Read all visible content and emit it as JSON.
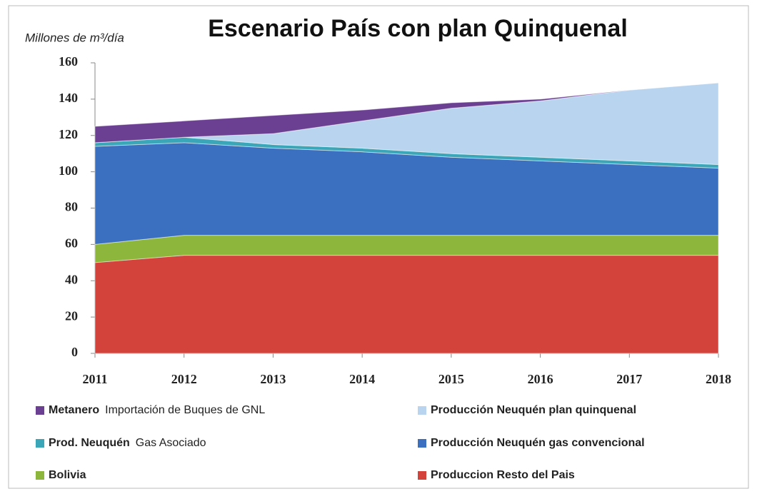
{
  "chart_data": {
    "type": "stacked_area",
    "title": "Escenario País con plan Quinquenal",
    "y_label": "Millones de m³/día",
    "x": [
      2011,
      2012,
      2013,
      2014,
      2015,
      2016,
      2017,
      2018
    ],
    "xlim": [
      2011,
      2018
    ],
    "xticks": [
      2011,
      2012,
      2013,
      2014,
      2015,
      2016,
      2017,
      2018
    ],
    "ylim": [
      0,
      160
    ],
    "yticks": [
      0,
      20,
      40,
      60,
      80,
      100,
      120,
      140,
      160
    ],
    "series": [
      {
        "name": "Produccion Resto del Pais",
        "color": "#d4433b",
        "values": [
          50,
          54,
          54,
          54,
          54,
          54,
          54,
          54
        ]
      },
      {
        "name": "Bolivia",
        "color": "#8db63c",
        "values": [
          10,
          11,
          11,
          11,
          11,
          11,
          11,
          11
        ]
      },
      {
        "name": "Producción Neuquén gas convencional",
        "color": "#3b6fbf",
        "values": [
          54,
          51,
          48,
          46,
          43,
          41,
          39,
          37
        ]
      },
      {
        "name": "Prod. Neuquén",
        "legend_note": "Gas Asociado",
        "color": "#3aa6b7",
        "values": [
          2,
          3,
          2,
          2,
          2,
          2,
          2,
          2
        ]
      },
      {
        "name": "Producción Neuquén plan quinquenal",
        "color": "#b9d4ee",
        "values": [
          0,
          0,
          6,
          15,
          25,
          31,
          39,
          45
        ]
      },
      {
        "name": "Metanero",
        "legend_note": "Importación de Buques de GNL",
        "color": "#6b3f92",
        "values": [
          9,
          9,
          10,
          6,
          3,
          1,
          0,
          0
        ]
      }
    ],
    "legend_columns": [
      [
        5,
        3,
        1
      ],
      [
        4,
        2,
        0
      ]
    ]
  }
}
